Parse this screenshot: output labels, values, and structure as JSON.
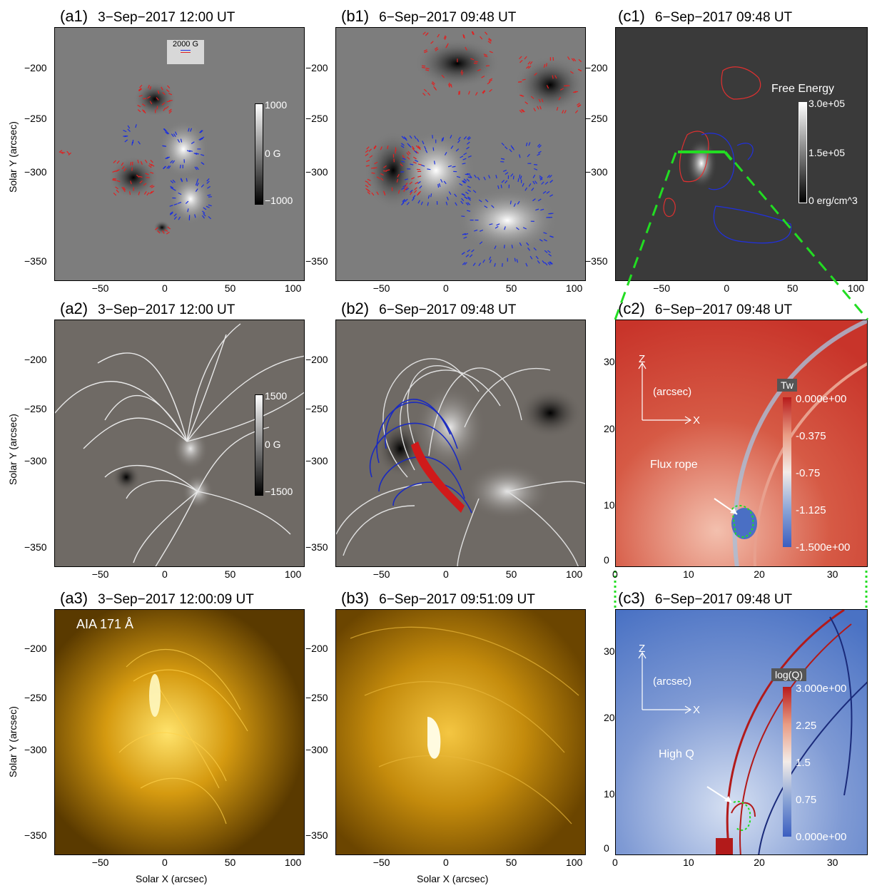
{
  "panels": {
    "a1": {
      "label": "(a1)",
      "title": "3−Sep−2017 12:00 UT",
      "legend": "2000 G",
      "cbar": [
        "1000",
        "0 G",
        "−1000"
      ]
    },
    "b1": {
      "label": "(b1)",
      "title": "6−Sep−2017 09:48 UT"
    },
    "c1": {
      "label": "(c1)",
      "title": "6−Sep−2017 09:48 UT",
      "cbar_title": "Free Energy",
      "cbar": [
        "3.0e+05",
        "1.5e+05",
        "0 erg/cm^3"
      ]
    },
    "a2": {
      "label": "(a2)",
      "title": "3−Sep−2017 12:00 UT",
      "cbar": [
        "1500",
        "0 G",
        "−1500"
      ]
    },
    "b2": {
      "label": "(b2)",
      "title": "6−Sep−2017 09:48 UT"
    },
    "c2": {
      "label": "(c2)",
      "title": "6−Sep−2017 09:48 UT",
      "axis_z": "Z",
      "axis_x": "X",
      "axis_unit": "(arcsec)",
      "annotation": "Flux rope",
      "cbar_title": "Tw",
      "cbar": [
        "0.000e+00",
        "-0.375",
        "-0.75",
        "-1.125",
        "-1.500e+00"
      ]
    },
    "a3": {
      "label": "(a3)",
      "title": "3−Sep−2017 12:00:09 UT",
      "inset": "AIA 171  Å"
    },
    "b3": {
      "label": "(b3)",
      "title": "6−Sep−2017 09:51:09 UT"
    },
    "c3": {
      "label": "(c3)",
      "title": "6−Sep−2017 09:48 UT",
      "axis_z": "Z",
      "axis_x": "X",
      "axis_unit": "(arcsec)",
      "annotation": "High Q",
      "cbar_title": "log(Q)",
      "cbar": [
        "3.000e+00",
        "2.25",
        "1.5",
        "0.75",
        "0.000e+00"
      ]
    }
  },
  "axes": {
    "solar_y_label": "Solar Y (arcsec)",
    "solar_x_label": "Solar X (arcsec)",
    "y_ticks": [
      "−200",
      "−250",
      "−300",
      "−350"
    ],
    "x_ticks": [
      "−50",
      "0",
      "50",
      "100"
    ],
    "z_ticks": [
      "30",
      "20",
      "10",
      "0"
    ],
    "zx_ticks": [
      "0",
      "10",
      "20",
      "30"
    ]
  },
  "colors": {
    "magnetogram_gray": "#7d7d7d",
    "aia_dark": "#5a3a00",
    "aia_bright": "#ffe36b",
    "tw_red": "#c8342a",
    "q_blue": "#4a72c4",
    "neg_vectors": "#e02020",
    "pos_vectors": "#1a2ee0",
    "green_marker": "#22dd22"
  }
}
